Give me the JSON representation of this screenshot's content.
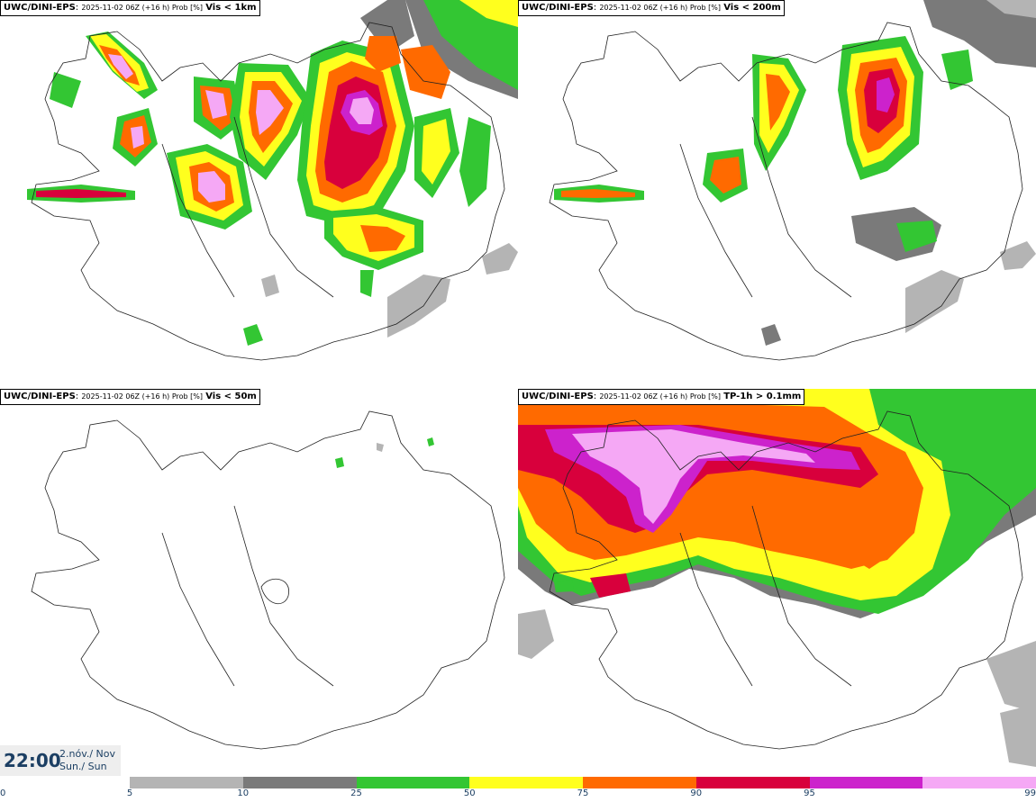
{
  "panels": [
    {
      "model": "UWC/DINI-EPS",
      "meta": "2025-11-02 06Z (+16 h) Prob [%]",
      "variable": "Vis < 1km"
    },
    {
      "model": "UWC/DINI-EPS",
      "meta": "2025-11-02 06Z (+16 h) Prob [%]",
      "variable": "Vis < 200m"
    },
    {
      "model": "UWC/DINI-EPS",
      "meta": "2025-11-02 06Z (+16 h) Prob [%]",
      "variable": "Vis < 50m"
    },
    {
      "model": "UWC/DINI-EPS",
      "meta": "2025-11-02 06Z (+16 h) Prob [%]",
      "variable": "TP-1h > 0.1mm"
    }
  ],
  "valid_time": {
    "time": "22:00",
    "date_line": "2.nóv./ Nov",
    "day_line": "Sun./ Sun"
  },
  "colorbar": {
    "ticks": [
      "0",
      "5",
      "10",
      "25",
      "50",
      "75",
      "90",
      "95",
      "99"
    ],
    "colors": [
      "#b4b4b4",
      "#7a7a7a",
      "#33c633",
      "#ffff1e",
      "#ff6a00",
      "#d8003c",
      "#cc22cc",
      "#f5a8f5"
    ]
  },
  "map": {
    "land_color": "#ffffff",
    "outline_color": "#222222"
  }
}
